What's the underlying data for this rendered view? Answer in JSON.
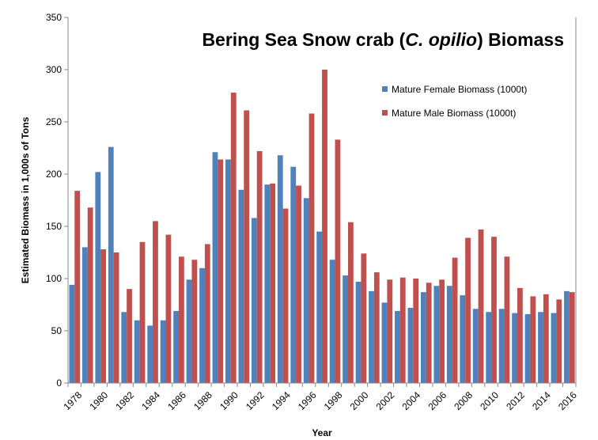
{
  "chart_data": {
    "type": "bar",
    "title_pre": "Bering Sea Snow crab (",
    "title_italic": "C. opilio",
    "title_post": ") Biomass",
    "xlabel": "Year",
    "ylabel": "Estimated Biomass in 1,000s of Tons",
    "ylim": [
      0,
      350
    ],
    "yticks": [
      "0",
      "50",
      "100",
      "150",
      "200",
      "250",
      "300",
      "350"
    ],
    "grid": false,
    "legend_position": "top-right",
    "categories": [
      "1978",
      "1979",
      "1980",
      "1981",
      "1982",
      "1983",
      "1984",
      "1985",
      "1986",
      "1987",
      "1988",
      "1989",
      "1990",
      "1991",
      "1992",
      "1993",
      "1994",
      "1995",
      "1996",
      "1997",
      "1998",
      "1999",
      "2000",
      "2001",
      "2002",
      "2003",
      "2004",
      "2005",
      "2006",
      "2007",
      "2008",
      "2009",
      "2010",
      "2011",
      "2012",
      "2013",
      "2014",
      "2015",
      "2016"
    ],
    "xtick_labels": [
      "1978",
      "1980",
      "1982",
      "1984",
      "1986",
      "1988",
      "1990",
      "1992",
      "1994",
      "1996",
      "1998",
      "2000",
      "2002",
      "2004",
      "2006",
      "2008",
      "2010",
      "2012",
      "2014",
      "2016"
    ],
    "series": [
      {
        "name": "Mature Female Biomass (1000t)",
        "color": "#4f81bd",
        "values": [
          94,
          130,
          202,
          226,
          68,
          60,
          55,
          60,
          69,
          99,
          110,
          221,
          214,
          185,
          158,
          190,
          218,
          207,
          177,
          145,
          118,
          103,
          97,
          88,
          77,
          69,
          72,
          87,
          93,
          93,
          84,
          71,
          68,
          71,
          67,
          66,
          68,
          67,
          88
        ]
      },
      {
        "name": "Mature Male Biomass (1000t)",
        "color": "#c0504d",
        "values": [
          184,
          168,
          128,
          125,
          90,
          135,
          155,
          142,
          121,
          118,
          133,
          214,
          278,
          261,
          222,
          191,
          167,
          189,
          258,
          300,
          233,
          154,
          124,
          106,
          99,
          101,
          100,
          96,
          99,
          120,
          139,
          147,
          140,
          121,
          91,
          83,
          85,
          80,
          87
        ]
      }
    ]
  }
}
